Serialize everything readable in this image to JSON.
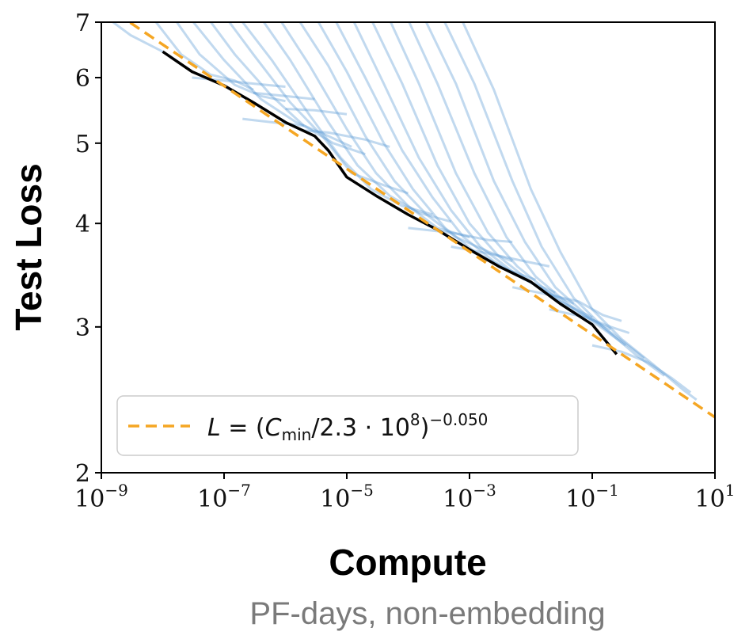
{
  "chart_data": {
    "type": "line",
    "scale": {
      "x": "log",
      "y": "log"
    },
    "xlabel": "Compute",
    "x_sublabel": "PF-days, non-embedding",
    "ylabel": "Test Loss",
    "xlim": [
      1e-09,
      10
    ],
    "ylim": [
      2,
      7
    ],
    "x_ticks": [
      {
        "value": 1e-09,
        "base": "10",
        "exp": "−9"
      },
      {
        "value": 1e-07,
        "base": "10",
        "exp": "−7"
      },
      {
        "value": 1e-05,
        "base": "10",
        "exp": "−5"
      },
      {
        "value": 0.001,
        "base": "10",
        "exp": "−3"
      },
      {
        "value": 0.1,
        "base": "10",
        "exp": "−1"
      },
      {
        "value": 10,
        "base": "10",
        "exp": "1"
      }
    ],
    "y_ticks": [
      {
        "value": 2,
        "label": "2"
      },
      {
        "value": 3,
        "label": "3"
      },
      {
        "value": 4,
        "label": "4"
      },
      {
        "value": 5,
        "label": "5"
      },
      {
        "value": 6,
        "label": "6"
      },
      {
        "value": 7,
        "label": "7"
      }
    ],
    "fit": {
      "label": "L = (C_min/2.3·10^8)^−0.050",
      "label_parts": {
        "lhs": "L",
        "eq": " = (",
        "c": "C",
        "c_sub": "min",
        "mid": "/2.3 · 10",
        "pow8": "8",
        "close": ")",
        "exponent": "−0.050"
      },
      "C0": 230000000.0,
      "alpha": 0.05,
      "color": "#f5a623"
    },
    "legend_position": "lower-left",
    "frontier": {
      "color": "#000000",
      "points": [
        [
          1e-08,
          6.45
        ],
        [
          3e-08,
          6.1
        ],
        [
          1e-07,
          5.87
        ],
        [
          3e-07,
          5.6
        ],
        [
          1e-06,
          5.3
        ],
        [
          3e-06,
          5.1
        ],
        [
          5e-06,
          4.9
        ],
        [
          1e-05,
          4.55
        ],
        [
          3e-05,
          4.32
        ],
        [
          0.0001,
          4.1
        ],
        [
          0.0003,
          3.93
        ],
        [
          0.001,
          3.72
        ],
        [
          0.003,
          3.55
        ],
        [
          0.01,
          3.4
        ],
        [
          0.03,
          3.2
        ],
        [
          0.1,
          3.02
        ],
        [
          0.25,
          2.78
        ]
      ]
    },
    "run_color": "#5b9bd5",
    "runs": [
      {
        "points": [
          [
            1.2e-09,
            7.1
          ],
          [
            3e-09,
            6.75
          ],
          [
            1e-08,
            6.45
          ]
        ]
      },
      {
        "points": [
          [
            5e-09,
            7.3
          ],
          [
            2e-08,
            6.4
          ],
          [
            6e-08,
            6.05
          ],
          [
            1.5e-07,
            5.95
          ],
          [
            3e-07,
            5.8
          ]
        ]
      },
      {
        "points": [
          [
            1e-08,
            7.4
          ],
          [
            4e-08,
            6.4
          ],
          [
            1.5e-07,
            5.88
          ],
          [
            4e-07,
            5.7
          ],
          [
            1e-06,
            5.62
          ]
        ]
      },
      {
        "points": [
          [
            2e-08,
            7.3
          ],
          [
            1e-07,
            6.3
          ],
          [
            4e-07,
            5.65
          ],
          [
            1.5e-06,
            5.3
          ],
          [
            5e-06,
            5.1
          ],
          [
            1.2e-05,
            4.95
          ]
        ]
      },
      {
        "points": [
          [
            4e-08,
            7.3
          ],
          [
            1.5e-07,
            6.4
          ],
          [
            6e-07,
            5.7
          ],
          [
            2e-06,
            5.25
          ],
          [
            6e-06,
            5.0
          ],
          [
            2e-05,
            4.85
          ]
        ]
      },
      {
        "points": [
          [
            8e-08,
            7.3
          ],
          [
            3e-07,
            6.4
          ],
          [
            1.2e-06,
            5.6
          ],
          [
            4e-06,
            5.1
          ],
          [
            1.2e-05,
            4.6
          ],
          [
            4e-05,
            4.45
          ],
          [
            0.0001,
            4.35
          ]
        ]
      },
      {
        "points": [
          [
            1.5e-07,
            7.2
          ],
          [
            6e-07,
            6.3
          ],
          [
            2.5e-06,
            5.4
          ],
          [
            8e-06,
            4.8
          ],
          [
            2.5e-05,
            4.4
          ],
          [
            8e-05,
            4.2
          ],
          [
            0.00025,
            4.1
          ]
        ]
      },
      {
        "points": [
          [
            3e-07,
            7.3
          ],
          [
            1.2e-06,
            6.3
          ],
          [
            5e-06,
            5.3
          ],
          [
            1.5e-05,
            4.7
          ],
          [
            5e-05,
            4.32
          ],
          [
            0.00015,
            4.12
          ],
          [
            0.0005,
            4.02
          ]
        ]
      },
      {
        "points": [
          [
            6e-07,
            7.3
          ],
          [
            2.5e-06,
            6.2
          ],
          [
            1e-05,
            5.2
          ],
          [
            3e-05,
            4.6
          ],
          [
            0.0001,
            4.2
          ],
          [
            0.0003,
            3.95
          ],
          [
            0.001,
            3.85
          ]
        ]
      },
      {
        "points": [
          [
            1.2e-06,
            7.3
          ],
          [
            5e-06,
            6.2
          ],
          [
            2e-05,
            5.1
          ],
          [
            6e-05,
            4.5
          ],
          [
            0.0002,
            4.1
          ],
          [
            0.0006,
            3.85
          ],
          [
            0.002,
            3.7
          ],
          [
            0.005,
            3.6
          ]
        ]
      },
      {
        "points": [
          [
            2.5e-06,
            7.3
          ],
          [
            1e-05,
            6.1
          ],
          [
            4e-05,
            5.0
          ],
          [
            0.00012,
            4.4
          ],
          [
            0.0004,
            3.95
          ],
          [
            0.0012,
            3.7
          ],
          [
            0.004,
            3.52
          ],
          [
            0.012,
            3.42
          ]
        ]
      },
      {
        "points": [
          [
            5e-06,
            7.3
          ],
          [
            2e-05,
            6.0
          ],
          [
            8e-05,
            4.9
          ],
          [
            0.00025,
            4.3
          ],
          [
            0.0008,
            3.85
          ],
          [
            0.0025,
            3.6
          ],
          [
            0.008,
            3.42
          ],
          [
            0.025,
            3.3
          ]
        ]
      },
      {
        "points": [
          [
            1e-05,
            7.3
          ],
          [
            4e-05,
            5.9
          ],
          [
            0.00015,
            4.8
          ],
          [
            0.0005,
            4.15
          ],
          [
            0.0015,
            3.75
          ],
          [
            0.005,
            3.5
          ],
          [
            0.015,
            3.33
          ],
          [
            0.05,
            3.2
          ]
        ]
      },
      {
        "points": [
          [
            2e-05,
            7.3
          ],
          [
            8e-05,
            5.9
          ],
          [
            0.0003,
            4.7
          ],
          [
            0.001,
            4.0
          ],
          [
            0.003,
            3.65
          ],
          [
            0.01,
            3.4
          ],
          [
            0.03,
            3.22
          ],
          [
            0.1,
            3.08
          ]
        ]
      },
      {
        "points": [
          [
            4e-05,
            7.3
          ],
          [
            0.00015,
            5.9
          ],
          [
            0.0006,
            4.6
          ],
          [
            0.002,
            3.9
          ],
          [
            0.006,
            3.55
          ],
          [
            0.02,
            3.3
          ],
          [
            0.06,
            3.12
          ],
          [
            0.2,
            2.98
          ]
        ]
      },
      {
        "points": [
          [
            8e-05,
            7.3
          ],
          [
            0.0003,
            5.9
          ],
          [
            0.0012,
            4.6
          ],
          [
            0.004,
            3.85
          ],
          [
            0.012,
            3.45
          ],
          [
            0.04,
            3.2
          ],
          [
            0.12,
            3.02
          ],
          [
            0.35,
            2.85
          ]
        ]
      },
      {
        "points": [
          [
            0.00015,
            7.3
          ],
          [
            0.0006,
            5.9
          ],
          [
            0.0025,
            4.5
          ],
          [
            0.008,
            3.8
          ],
          [
            0.025,
            3.35
          ],
          [
            0.08,
            3.1
          ],
          [
            0.25,
            2.92
          ],
          [
            0.7,
            2.75
          ]
        ]
      },
      {
        "points": [
          [
            0.0003,
            7.3
          ],
          [
            0.0012,
            5.9
          ],
          [
            0.005,
            4.5
          ],
          [
            0.015,
            3.75
          ],
          [
            0.05,
            3.25
          ],
          [
            0.15,
            3.0
          ],
          [
            0.5,
            2.78
          ],
          [
            1.5,
            2.62
          ]
        ]
      },
      {
        "points": [
          [
            0.0006,
            7.3
          ],
          [
            0.0025,
            5.8
          ],
          [
            0.01,
            4.4
          ],
          [
            0.03,
            3.7
          ],
          [
            0.1,
            3.15
          ],
          [
            0.3,
            2.9
          ],
          [
            1,
            2.7
          ],
          [
            3,
            2.52
          ],
          [
            5,
            2.45
          ]
        ]
      },
      {
        "points": [
          [
            2e-07,
            5.35
          ],
          [
            6e-07,
            5.3
          ],
          [
            2e-06,
            5.25
          ]
        ]
      },
      {
        "points": [
          [
            1e-06,
            5.5
          ],
          [
            3e-06,
            5.48
          ],
          [
            1e-05,
            5.42
          ]
        ]
      },
      {
        "points": [
          [
            2e-06,
            5.18
          ],
          [
            5e-06,
            5.15
          ],
          [
            2e-05,
            5.05
          ],
          [
            5e-05,
            4.95
          ]
        ]
      },
      {
        "points": [
          [
            0.0001,
            3.95
          ],
          [
            0.0005,
            3.9
          ],
          [
            0.002,
            3.82
          ],
          [
            0.005,
            3.8
          ]
        ]
      },
      {
        "points": [
          [
            0.0005,
            3.75
          ],
          [
            0.002,
            3.68
          ],
          [
            0.008,
            3.6
          ],
          [
            0.02,
            3.55
          ]
        ]
      },
      {
        "points": [
          [
            0.005,
            3.35
          ],
          [
            0.02,
            3.28
          ],
          [
            0.06,
            3.22
          ],
          [
            0.15,
            3.1
          ],
          [
            0.3,
            3.05
          ]
        ]
      },
      {
        "points": [
          [
            0.02,
            3.15
          ],
          [
            0.08,
            3.08
          ],
          [
            0.2,
            3.0
          ],
          [
            0.4,
            2.95
          ]
        ]
      },
      {
        "points": [
          [
            0.1,
            2.85
          ],
          [
            0.3,
            2.8
          ],
          [
            0.8,
            2.72
          ],
          [
            2,
            2.6
          ],
          [
            4,
            2.5
          ]
        ]
      },
      {
        "points": [
          [
            3e-08,
            6.0
          ],
          [
            1e-07,
            5.95
          ],
          [
            3e-07,
            5.9
          ],
          [
            1e-06,
            5.85
          ]
        ]
      },
      {
        "points": [
          [
            3e-07,
            5.75
          ],
          [
            1e-06,
            5.7
          ],
          [
            3e-06,
            5.65
          ]
        ]
      }
    ]
  }
}
